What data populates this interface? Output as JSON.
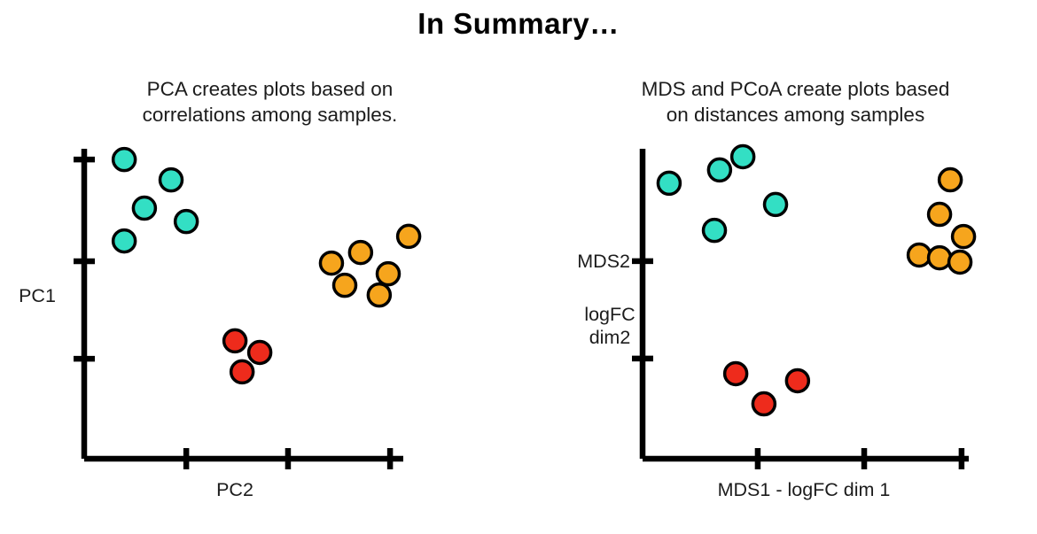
{
  "page": {
    "title": "In Summary…"
  },
  "chart_data": [
    {
      "type": "scatter",
      "title": "PCA creates plots based on correlations among samples.",
      "subtitle_lines": [
        "PCA creates plots based on",
        "correlations among samples."
      ],
      "xlabel": "PC2",
      "ylabel_lines": [
        "PC1"
      ],
      "coord_units": "percent of axis length from origin",
      "axis": {
        "x_ticks_pct": [
          32.9,
          65.7,
          98.6
        ],
        "y_ticks_pct": [
          98.5,
          65.0,
          32.9
        ],
        "grid": false
      },
      "series": [
        {
          "name": "teal-cluster",
          "color": "#33DFC4",
          "points": [
            [
              12.9,
              98.5
            ],
            [
              28.0,
              91.8
            ],
            [
              19.4,
              82.5
            ],
            [
              32.9,
              78.1
            ],
            [
              12.9,
              71.7
            ]
          ]
        },
        {
          "name": "orange-cluster",
          "color": "#F6A51D",
          "points": [
            [
              79.7,
              64.4
            ],
            [
              89.1,
              67.9
            ],
            [
              104.6,
              73.2
            ],
            [
              98.0,
              60.9
            ],
            [
              84.0,
              57.1
            ],
            [
              95.1,
              53.9
            ]
          ]
        },
        {
          "name": "red-cluster",
          "color": "#EE2B1C",
          "points": [
            [
              48.6,
              38.8
            ],
            [
              56.6,
              35.0
            ],
            [
              50.9,
              28.6
            ]
          ]
        }
      ]
    },
    {
      "type": "scatter",
      "title": "MDS and PCoA create plots based on distances among samples",
      "subtitle_lines": [
        "MDS and PCoA create plots based",
        "on distances among samples"
      ],
      "xlabel": "MDS1 - logFC dim 1",
      "ylabel_lines": [
        "MDS2",
        "logFC",
        "dim2"
      ],
      "coord_units": "percent of axis length from origin",
      "axis": {
        "x_ticks_pct": [
          35.6,
          68.5,
          98.6
        ],
        "y_ticks_pct": [
          64.1,
          32.5
        ],
        "grid": false
      },
      "series": [
        {
          "name": "teal-cluster",
          "color": "#33DFC4",
          "points": [
            [
              8.2,
              89.4
            ],
            [
              23.8,
              93.7
            ],
            [
              31.0,
              98.0
            ],
            [
              41.1,
              82.5
            ],
            [
              22.2,
              74.1
            ]
          ]
        },
        {
          "name": "orange-cluster",
          "color": "#F6A51D",
          "points": [
            [
              95.1,
              90.5
            ],
            [
              91.8,
              79.3
            ],
            [
              99.2,
              72.1
            ],
            [
              85.5,
              66.1
            ],
            [
              91.8,
              65.2
            ],
            [
              98.1,
              63.8
            ]
          ]
        },
        {
          "name": "red-cluster",
          "color": "#EE2B1C",
          "points": [
            [
              28.8,
              27.6
            ],
            [
              47.9,
              25.3
            ],
            [
              37.5,
              17.8
            ]
          ]
        }
      ]
    }
  ]
}
